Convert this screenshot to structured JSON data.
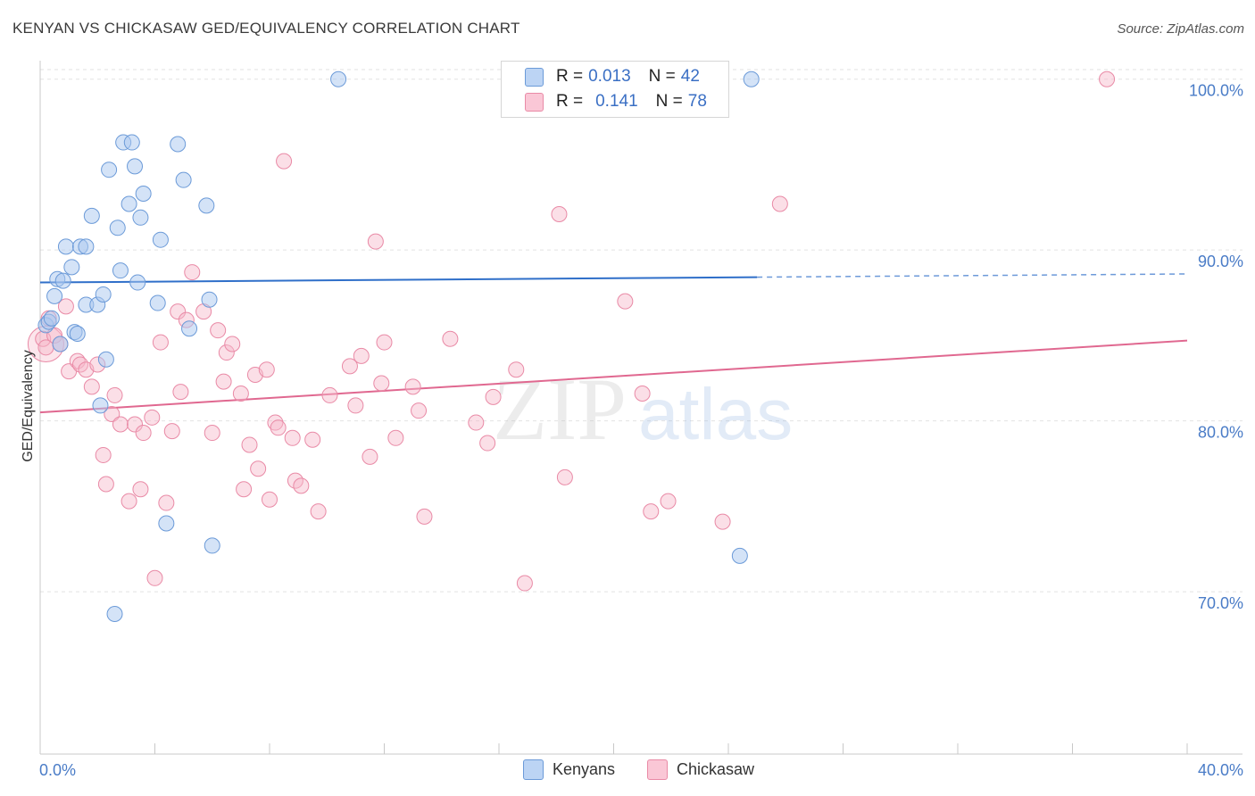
{
  "header": {
    "title": "KENYAN VS CHICKASAW GED/EQUIVALENCY CORRELATION CHART",
    "source": "Source: ZipAtlas.com"
  },
  "watermark": {
    "part1": "ZIP",
    "part2": "atlas"
  },
  "colors": {
    "kenyan_fill": "#a9c8f0",
    "kenyan_stroke": "#6b9ad8",
    "kenyan_line": "#2f6fc9",
    "chickasaw_fill": "#f6b7c9",
    "chickasaw_stroke": "#e98aa6",
    "chickasaw_line": "#e06890",
    "axis_text": "#4a7cc7"
  },
  "legend": {
    "rows": [
      {
        "r_label": "R =",
        "r_value": "0.013",
        "n_label": "N =",
        "n_value": "42"
      },
      {
        "r_label": "R =",
        "r_value": "0.141",
        "n_label": "N =",
        "n_value": "78"
      }
    ]
  },
  "bottom_legend": {
    "kenyans": "Kenyans",
    "chickasaw": "Chickasaw"
  },
  "chart_data": {
    "type": "scatter",
    "title": "KENYAN VS CHICKASAW GED/EQUIVALENCY CORRELATION CHART",
    "xlabel": "",
    "ylabel": "GED/Equivalency",
    "xlim": [
      0,
      40
    ],
    "ylim": [
      60.5,
      101.5
    ],
    "x_tick_labels": [
      "0.0%",
      "40.0%"
    ],
    "y_ticks": [
      70,
      80,
      90,
      100
    ],
    "y_tick_labels": [
      "70.0%",
      "80.0%",
      "90.0%",
      "100.0%"
    ],
    "grid": true,
    "series": [
      {
        "name": "Kenyans",
        "r": 0.013,
        "n": 42,
        "trend": {
          "x_solid_end": 25.0,
          "x_end": 40.0,
          "y_start": 88.1,
          "y_end": 88.6
        },
        "points": [
          [
            0.2,
            85.6
          ],
          [
            0.3,
            85.8
          ],
          [
            0.5,
            87.3
          ],
          [
            0.6,
            88.3
          ],
          [
            0.7,
            84.5
          ],
          [
            0.8,
            88.2
          ],
          [
            0.9,
            90.2
          ],
          [
            1.1,
            89.0
          ],
          [
            1.2,
            85.2
          ],
          [
            1.3,
            85.1
          ],
          [
            1.4,
            90.2
          ],
          [
            1.6,
            86.8
          ],
          [
            1.6,
            90.2
          ],
          [
            1.8,
            92.0
          ],
          [
            2.0,
            86.8
          ],
          [
            2.1,
            80.9
          ],
          [
            2.2,
            87.4
          ],
          [
            2.3,
            83.6
          ],
          [
            2.4,
            94.7
          ],
          [
            2.6,
            68.7
          ],
          [
            2.7,
            91.3
          ],
          [
            2.8,
            88.8
          ],
          [
            2.9,
            96.3
          ],
          [
            3.1,
            92.7
          ],
          [
            3.2,
            96.3
          ],
          [
            3.3,
            94.9
          ],
          [
            3.4,
            88.1
          ],
          [
            3.5,
            91.9
          ],
          [
            3.6,
            93.3
          ],
          [
            4.1,
            86.9
          ],
          [
            4.2,
            90.6
          ],
          [
            4.4,
            74.0
          ],
          [
            4.8,
            96.2
          ],
          [
            5.0,
            94.1
          ],
          [
            5.2,
            85.4
          ],
          [
            5.8,
            92.6
          ],
          [
            5.9,
            87.1
          ],
          [
            6.0,
            72.7
          ],
          [
            10.4,
            100.0
          ],
          [
            24.8,
            100.0
          ],
          [
            24.4,
            72.1
          ],
          [
            0.4,
            86.0
          ]
        ]
      },
      {
        "name": "Chickasaw",
        "r": 0.141,
        "n": 78,
        "trend": {
          "x_solid_end": 40.0,
          "x_end": 40.0,
          "y_start": 80.5,
          "y_end": 84.7
        },
        "points": [
          [
            0.1,
            84.8
          ],
          [
            0.3,
            86.0
          ],
          [
            0.5,
            85.0
          ],
          [
            0.7,
            84.5
          ],
          [
            0.9,
            86.7
          ],
          [
            1.0,
            82.9
          ],
          [
            1.3,
            83.5
          ],
          [
            1.4,
            83.3
          ],
          [
            1.6,
            83.0
          ],
          [
            1.8,
            82.0
          ],
          [
            2.0,
            83.3
          ],
          [
            2.2,
            78.0
          ],
          [
            2.3,
            76.3
          ],
          [
            2.5,
            80.4
          ],
          [
            2.6,
            81.5
          ],
          [
            2.8,
            79.8
          ],
          [
            3.1,
            75.3
          ],
          [
            3.3,
            79.8
          ],
          [
            3.5,
            76.0
          ],
          [
            3.6,
            79.3
          ],
          [
            3.9,
            80.2
          ],
          [
            4.0,
            70.8
          ],
          [
            4.2,
            84.6
          ],
          [
            4.4,
            75.2
          ],
          [
            4.6,
            79.4
          ],
          [
            4.8,
            86.4
          ],
          [
            4.9,
            81.7
          ],
          [
            5.1,
            85.9
          ],
          [
            5.3,
            88.7
          ],
          [
            5.7,
            86.4
          ],
          [
            6.0,
            79.3
          ],
          [
            6.2,
            85.3
          ],
          [
            6.4,
            82.3
          ],
          [
            6.5,
            84.0
          ],
          [
            6.7,
            84.5
          ],
          [
            7.0,
            81.6
          ],
          [
            7.1,
            76.0
          ],
          [
            7.3,
            78.6
          ],
          [
            7.5,
            82.7
          ],
          [
            7.6,
            77.2
          ],
          [
            7.9,
            83.0
          ],
          [
            8.0,
            75.4
          ],
          [
            8.2,
            79.9
          ],
          [
            8.3,
            79.6
          ],
          [
            8.5,
            95.2
          ],
          [
            8.8,
            79.0
          ],
          [
            8.9,
            76.5
          ],
          [
            9.1,
            76.2
          ],
          [
            9.5,
            78.9
          ],
          [
            9.7,
            74.7
          ],
          [
            10.1,
            81.5
          ],
          [
            10.8,
            83.2
          ],
          [
            11.0,
            80.9
          ],
          [
            11.2,
            83.8
          ],
          [
            11.5,
            77.9
          ],
          [
            11.7,
            90.5
          ],
          [
            11.9,
            82.2
          ],
          [
            12.0,
            84.6
          ],
          [
            12.4,
            79.0
          ],
          [
            13.0,
            82.0
          ],
          [
            13.2,
            80.6
          ],
          [
            13.4,
            74.4
          ],
          [
            14.3,
            84.8
          ],
          [
            15.2,
            79.9
          ],
          [
            15.6,
            78.7
          ],
          [
            15.8,
            81.4
          ],
          [
            16.6,
            83.0
          ],
          [
            16.9,
            70.5
          ],
          [
            18.1,
            92.1
          ],
          [
            18.3,
            76.7
          ],
          [
            20.4,
            87.0
          ],
          [
            21.0,
            81.6
          ],
          [
            21.3,
            74.7
          ],
          [
            21.9,
            75.3
          ],
          [
            23.8,
            74.1
          ],
          [
            25.8,
            92.7
          ],
          [
            37.2,
            100.0
          ],
          [
            0.2,
            84.3
          ]
        ]
      }
    ]
  }
}
